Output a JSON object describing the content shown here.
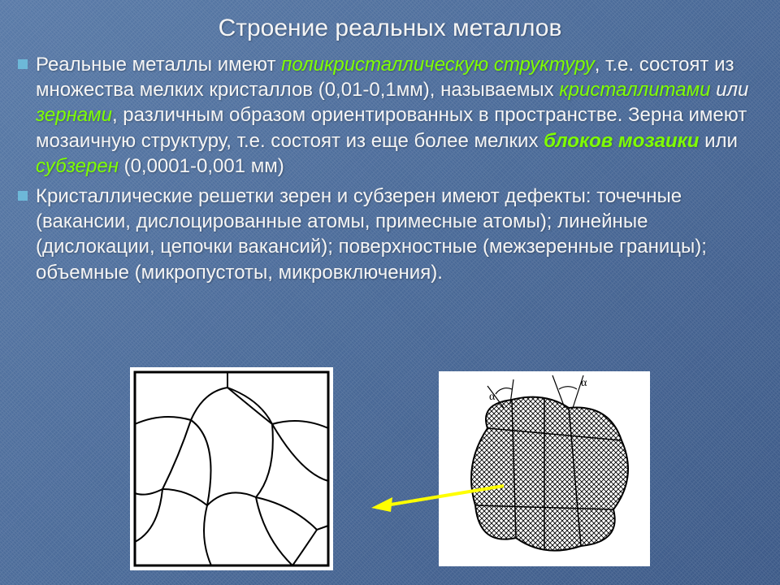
{
  "title": "Строение реальных металлов",
  "bullets": [
    {
      "segments": [
        {
          "t": "Реальные металлы имеют ",
          "c": "plain"
        },
        {
          "t": "поликристаллическую структуру",
          "c": "hl-green"
        },
        {
          "t": ", т.е. состоят из множества мелких кристаллов (0,01-0,1мм), называемых ",
          "c": "plain"
        },
        {
          "t": "кристаллитами",
          "c": "hl-green"
        },
        {
          "t": " или ",
          "c": "hl-or"
        },
        {
          "t": "зернами",
          "c": "hl-green"
        },
        {
          "t": ", различным образом ориентированных в пространстве. Зерна имеют мозаичную структуру, т.е. состоят из еще более мелких ",
          "c": "plain"
        },
        {
          "t": "блоков мозаики",
          "c": "hl-green-bold"
        },
        {
          "t": " или ",
          "c": "plain"
        },
        {
          "t": "субзерен",
          "c": "hl-green"
        },
        {
          "t": " (0,0001-0,001 мм)",
          "c": "plain"
        }
      ]
    },
    {
      "segments": [
        {
          "t": "Кристаллические решетки зерен и субзерен имеют дефекты: точечные (вакансии, дислоцированные атомы, примесные атомы); линейные (дислокации, цепочки вакансий); поверхностные (межзеренные границы); объемные (микропустоты, микровключения).",
          "c": "plain"
        }
      ]
    }
  ],
  "figures": {
    "left": {
      "type": "polycrystal-grains",
      "stroke": "#000000",
      "stroke_width": 2,
      "background": "#ffffff"
    },
    "right": {
      "type": "subgrain-mosaic",
      "stroke": "#000000",
      "hatch_spacing": 6,
      "background": "#ffffff",
      "angle_label": "α"
    },
    "arrow_color": "#ffff00"
  },
  "colors": {
    "slide_bg_from": "#5a7ba8",
    "slide_bg_to": "#3d5a88",
    "text": "#f5f5f5",
    "highlight": "#7fff00",
    "bullet_marker": "#6db8d8"
  },
  "typography": {
    "title_fontsize": 30,
    "body_fontsize": 24,
    "font_family": "Arial"
  }
}
